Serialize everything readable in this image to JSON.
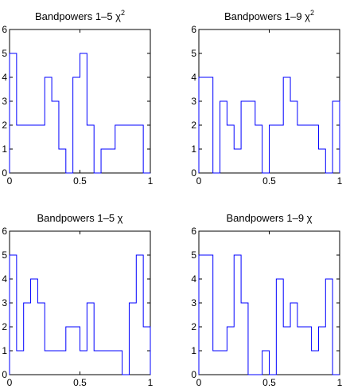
{
  "chart_data": [
    {
      "type": "line",
      "style": "histogram-stairs",
      "title_main": "Bandpowers 1–5 ",
      "title_sym": "χ",
      "title_sup": "2",
      "xlim": [
        0,
        1
      ],
      "ylim": [
        0,
        6
      ],
      "xticks": [
        0,
        0.5,
        1
      ],
      "yticks": [
        0,
        1,
        2,
        3,
        4,
        5,
        6
      ],
      "xticklabels": [
        "0",
        "0.5",
        "1"
      ],
      "yticklabels": [
        "0",
        "1",
        "2",
        "3",
        "4",
        "5",
        "6"
      ],
      "color": "#0000ff",
      "bin_edges": [
        0,
        0.05,
        0.1,
        0.15,
        0.2,
        0.25,
        0.3,
        0.35,
        0.4,
        0.45,
        0.5,
        0.55,
        0.6,
        0.65,
        0.7,
        0.75,
        0.8,
        0.85,
        0.9,
        0.95,
        1.0
      ],
      "counts": [
        5,
        2,
        2,
        2,
        2,
        4,
        3,
        1,
        0,
        4,
        5,
        2,
        0,
        1,
        1,
        2,
        2,
        2,
        2,
        0
      ]
    },
    {
      "type": "line",
      "style": "histogram-stairs",
      "title_main": "Bandpowers 1–9 ",
      "title_sym": "χ",
      "title_sup": "2",
      "xlim": [
        0,
        1
      ],
      "ylim": [
        0,
        6
      ],
      "xticks": [
        0,
        0.5,
        1
      ],
      "yticks": [
        0,
        1,
        2,
        3,
        4,
        5,
        6
      ],
      "xticklabels": [
        "0",
        "0.5",
        "1"
      ],
      "yticklabels": [
        "0",
        "1",
        "2",
        "3",
        "4",
        "5",
        "6"
      ],
      "color": "#0000ff",
      "bin_edges": [
        0,
        0.05,
        0.1,
        0.15,
        0.2,
        0.25,
        0.3,
        0.35,
        0.4,
        0.45,
        0.5,
        0.55,
        0.6,
        0.65,
        0.7,
        0.75,
        0.8,
        0.85,
        0.9,
        0.95,
        1.0
      ],
      "counts": [
        4,
        4,
        0,
        3,
        2,
        1,
        3,
        3,
        2,
        0,
        2,
        2,
        4,
        3,
        2,
        2,
        2,
        1,
        0,
        3
      ]
    },
    {
      "type": "line",
      "style": "histogram-stairs",
      "title_main": "Bandpowers 1–5 ",
      "title_sym": "χ",
      "title_sup": "",
      "xlim": [
        0,
        1
      ],
      "ylim": [
        0,
        6
      ],
      "xticks": [
        0,
        0.5,
        1
      ],
      "yticks": [
        0,
        1,
        2,
        3,
        4,
        5,
        6
      ],
      "xticklabels": [
        "0",
        "0.5",
        "1"
      ],
      "yticklabels": [
        "0",
        "1",
        "2",
        "3",
        "4",
        "5",
        "6"
      ],
      "color": "#0000ff",
      "bin_edges": [
        0,
        0.05,
        0.1,
        0.15,
        0.2,
        0.25,
        0.3,
        0.35,
        0.4,
        0.45,
        0.5,
        0.55,
        0.6,
        0.65,
        0.7,
        0.75,
        0.8,
        0.85,
        0.9,
        0.95,
        1.0
      ],
      "counts": [
        5,
        1,
        3,
        4,
        3,
        1,
        1,
        1,
        2,
        2,
        1,
        3,
        1,
        1,
        1,
        1,
        0,
        3,
        5,
        2
      ]
    },
    {
      "type": "line",
      "style": "histogram-stairs",
      "title_main": "Bandpowers 1–9 ",
      "title_sym": "χ",
      "title_sup": "",
      "xlim": [
        0,
        1
      ],
      "ylim": [
        0,
        6
      ],
      "xticks": [
        0,
        0.5,
        1
      ],
      "yticks": [
        0,
        1,
        2,
        3,
        4,
        5,
        6
      ],
      "xticklabels": [
        "0",
        "0.5",
        "1"
      ],
      "yticklabels": [
        "0",
        "1",
        "2",
        "3",
        "4",
        "5",
        "6"
      ],
      "color": "#0000ff",
      "bin_edges": [
        0,
        0.05,
        0.1,
        0.15,
        0.2,
        0.25,
        0.3,
        0.35,
        0.4,
        0.45,
        0.5,
        0.55,
        0.6,
        0.65,
        0.7,
        0.75,
        0.8,
        0.85,
        0.9,
        0.95,
        1.0
      ],
      "counts": [
        5,
        5,
        1,
        1,
        2,
        5,
        3,
        0,
        0,
        1,
        0,
        4,
        2,
        3,
        2,
        2,
        1,
        2,
        4,
        0
      ]
    }
  ]
}
